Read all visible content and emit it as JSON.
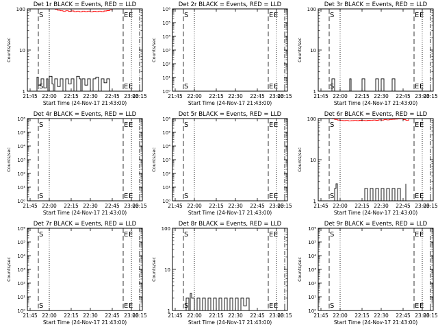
{
  "figure": {
    "background": "#ffffff",
    "events_color": "#000000",
    "lld_color": "#ff0000",
    "xlabel": "Start Time (24-Nov-17 21:43:00)",
    "ylabel": "Counts/sec",
    "time_tick_labels": [
      "21:45",
      "22:00",
      "22:15",
      "22:30",
      "22:45",
      "23:00",
      "23:15"
    ],
    "marker_S": "S",
    "marker_E": "E"
  },
  "chart_data": [
    {
      "type": "line",
      "title": "Det 1r BLACK = Events, RED = LLD",
      "xlim": [
        -1,
        41
      ],
      "ylog": true,
      "ylim": [
        1,
        100
      ],
      "y_tick_labels": [
        "1",
        "10",
        "100"
      ],
      "markers": [
        {
          "label": "S",
          "x": 3
        },
        {
          "label": "E",
          "x": 34
        }
      ],
      "series": [
        {
          "name": "Events",
          "color": "#000000",
          "x": [
            0,
            2,
            2.5,
            3,
            4,
            5,
            6,
            6.5,
            7,
            8,
            8.5,
            9,
            10,
            11,
            12,
            13,
            14,
            15,
            16,
            17,
            18,
            18.5,
            19,
            20,
            21,
            22,
            23,
            24,
            25,
            26,
            27,
            28,
            29,
            30
          ],
          "y": [
            1,
            1,
            2.2,
            1.4,
            2,
            1.2,
            2,
            1,
            2.3,
            1.5,
            1,
            2,
            1.3,
            2,
            1,
            2,
            1.5,
            2,
            1,
            2.3,
            2,
            1,
            2,
            1.4,
            2,
            1,
            2,
            2.2,
            1,
            2,
            1.6,
            2,
            1,
            1
          ]
        },
        {
          "name": "LLD",
          "color": "#ff0000",
          "x": [
            9,
            10,
            11,
            12,
            13,
            14,
            15,
            16,
            17,
            18,
            19,
            20,
            21,
            22,
            23,
            24,
            25,
            26,
            27,
            28,
            29,
            30
          ],
          "y": [
            98,
            93,
            90,
            88,
            90,
            87,
            89,
            86,
            88,
            85,
            88,
            86,
            88,
            85,
            87,
            86,
            88,
            86,
            89,
            91,
            94,
            99
          ]
        }
      ]
    },
    {
      "type": "line",
      "title": "Det 2r BLACK = Events, RED = LLD",
      "xlim": [
        -1,
        41
      ],
      "ylog": true,
      "ylim": [
        1,
        1000000
      ],
      "y_tick_labels": [
        "10⁰",
        "10¹",
        "10²",
        "10³",
        "10⁴",
        "10⁵",
        "10⁶"
      ],
      "markers": [
        {
          "label": "S",
          "x": 3
        },
        {
          "label": "E",
          "x": 34
        }
      ],
      "series": []
    },
    {
      "type": "line",
      "title": "Det 3r BLACK = Events, RED = LLD",
      "xlim": [
        -1,
        41
      ],
      "ylog": true,
      "ylim": [
        1,
        100
      ],
      "y_tick_labels": [
        "1",
        "10",
        "100"
      ],
      "markers": [
        {
          "label": "S",
          "x": 3
        },
        {
          "label": "E",
          "x": 34
        }
      ],
      "series": [
        {
          "name": "Events",
          "color": "#000000",
          "x": [
            2,
            3.5,
            4,
            5,
            6,
            7,
            8,
            9,
            10,
            10.5,
            11,
            12,
            13,
            14,
            15,
            16,
            17,
            18,
            19,
            20,
            21,
            22,
            23,
            24,
            25,
            26,
            27,
            28,
            29,
            30
          ],
          "y": [
            1,
            1,
            2,
            1,
            1,
            1,
            1,
            1,
            1,
            2,
            1,
            1,
            1,
            1,
            2,
            1,
            1,
            1,
            1,
            2,
            1,
            2,
            1,
            1,
            1,
            2,
            1,
            1,
            1,
            1
          ]
        }
      ]
    },
    {
      "type": "line",
      "title": "Det 4r BLACK = Events, RED = LLD",
      "xlim": [
        -1,
        41
      ],
      "ylog": true,
      "ylim": [
        1,
        1000000
      ],
      "y_tick_labels": [
        "10⁰",
        "10¹",
        "10²",
        "10³",
        "10⁴",
        "10⁵",
        "10⁶"
      ],
      "markers": [
        {
          "label": "S",
          "x": 3
        },
        {
          "label": "E",
          "x": 34
        }
      ],
      "series": []
    },
    {
      "type": "line",
      "title": "Det 5r BLACK = Events, RED = LLD",
      "xlim": [
        -1,
        41
      ],
      "ylog": true,
      "ylim": [
        1,
        1000000
      ],
      "y_tick_labels": [
        "10⁰",
        "10¹",
        "10²",
        "10³",
        "10⁴",
        "10⁵",
        "10⁶"
      ],
      "markers": [
        {
          "label": "S",
          "x": 3
        },
        {
          "label": "E",
          "x": 34
        }
      ],
      "series": []
    },
    {
      "type": "line",
      "title": "Det 6r BLACK = Events, RED = LLD",
      "xlim": [
        -1,
        41
      ],
      "ylog": true,
      "ylim": [
        1,
        100
      ],
      "y_tick_labels": [
        "1",
        "10",
        "100"
      ],
      "markers": [
        {
          "label": "S",
          "x": 3
        },
        {
          "label": "E",
          "x": 34
        }
      ],
      "series": [
        {
          "name": "Events",
          "color": "#000000",
          "x": [
            4,
            5,
            5.5,
            6,
            7,
            8,
            9,
            10,
            11,
            12,
            13,
            14,
            15,
            16,
            17,
            18,
            19,
            20,
            21,
            22,
            23,
            24,
            25,
            26,
            27,
            28,
            29,
            30,
            31
          ],
          "y": [
            1,
            2,
            2.6,
            1,
            1,
            1,
            1,
            1,
            1,
            1,
            1,
            1,
            1,
            2,
            1,
            2,
            1,
            2,
            1,
            2,
            1,
            2,
            1,
            2,
            1,
            2,
            1,
            1,
            2.6
          ]
        },
        {
          "name": "LLD",
          "color": "#ff0000",
          "x": [
            4,
            5,
            6,
            7,
            8,
            9,
            10,
            11,
            12,
            13,
            14,
            15,
            16,
            17,
            18,
            19,
            20,
            21,
            22,
            23,
            24,
            25,
            26,
            27,
            28,
            29,
            30,
            31,
            32
          ],
          "y": [
            99,
            95,
            92,
            90,
            89,
            90,
            88,
            89,
            90,
            89,
            91,
            90,
            89,
            91,
            90,
            92,
            91,
            93,
            92,
            94,
            93,
            95,
            96,
            97,
            98,
            99,
            94,
            90,
            97
          ]
        }
      ]
    },
    {
      "type": "line",
      "title": "Det 7r BLACK = Events, RED = LLD",
      "xlim": [
        -1,
        41
      ],
      "ylog": true,
      "ylim": [
        1,
        1000000
      ],
      "y_tick_labels": [
        "10⁰",
        "10¹",
        "10²",
        "10³",
        "10⁴",
        "10⁵",
        "10⁶"
      ],
      "markers": [
        {
          "label": "S",
          "x": 3
        },
        {
          "label": "E",
          "x": 34
        }
      ],
      "series": []
    },
    {
      "type": "line",
      "title": "Det 8r BLACK = Events, RED = LLD",
      "xlim": [
        -1,
        41
      ],
      "ylog": true,
      "ylim": [
        1,
        100
      ],
      "y_tick_labels": [
        "1",
        "10",
        "100"
      ],
      "markers": [
        {
          "label": "S",
          "x": 3
        },
        {
          "label": "E",
          "x": 34
        }
      ],
      "series": [
        {
          "name": "Events",
          "color": "#000000",
          "x": [
            3,
            4,
            5,
            5.5,
            6,
            7,
            8,
            9,
            10,
            11,
            12,
            13,
            14,
            15,
            16,
            17,
            18,
            19,
            20,
            21,
            22,
            23,
            24,
            25,
            26,
            27,
            28
          ],
          "y": [
            1,
            2,
            1,
            2.6,
            2,
            1,
            2,
            1,
            2,
            1,
            2,
            1,
            2,
            1,
            2,
            1,
            2,
            1,
            2,
            1,
            2,
            1,
            2,
            1.3,
            2,
            1,
            1
          ]
        }
      ]
    },
    {
      "type": "line",
      "title": "Det 9r BLACK = Events, RED = LLD",
      "xlim": [
        -1,
        41
      ],
      "ylog": true,
      "ylim": [
        1,
        1000000
      ],
      "y_tick_labels": [
        "10⁰",
        "10¹",
        "10²",
        "10³",
        "10⁴",
        "10⁵",
        "10⁶"
      ],
      "markers": [
        {
          "label": "S",
          "x": 3
        },
        {
          "label": "E",
          "x": 34
        }
      ],
      "series": []
    }
  ]
}
